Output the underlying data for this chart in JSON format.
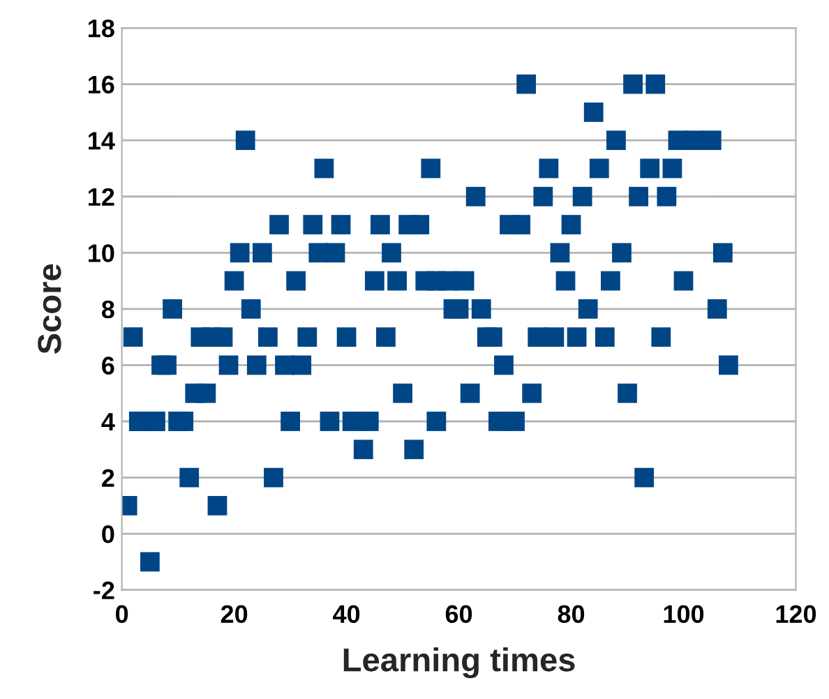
{
  "chart_data": {
    "type": "scatter",
    "xlabel": "Learning times",
    "ylabel": "Score",
    "x": [
      1,
      2,
      3,
      5,
      6,
      7,
      8,
      9,
      10,
      11,
      12,
      13,
      14,
      15,
      16,
      17,
      18,
      19,
      20,
      21,
      22,
      23,
      24,
      25,
      26,
      27,
      28,
      29,
      30,
      31,
      32,
      33,
      34,
      35,
      36,
      37,
      38,
      39,
      40,
      41,
      43,
      44,
      45,
      46,
      47,
      48,
      49,
      50,
      51,
      52,
      53,
      54,
      55,
      56,
      56,
      58,
      59,
      60,
      61,
      62,
      63,
      64,
      65,
      66,
      67,
      68,
      69,
      70,
      71,
      72,
      73,
      74,
      75,
      76,
      77,
      78,
      79,
      80,
      81,
      82,
      83,
      84,
      85,
      86,
      87,
      88,
      89,
      90,
      91,
      92,
      93,
      94,
      95,
      96,
      97,
      98,
      99,
      100,
      102,
      105,
      106,
      107,
      108
    ],
    "series": [
      {
        "color": "#004586",
        "values": [
          1,
          7,
          4,
          -1,
          4,
          6,
          6,
          8,
          4,
          4,
          2,
          5,
          7,
          5,
          7,
          1,
          7,
          6,
          9,
          10,
          14,
          8,
          6,
          10,
          7,
          2,
          11,
          6,
          4,
          9,
          6,
          7,
          11,
          10,
          13,
          4,
          10,
          11,
          7,
          4,
          3,
          4,
          9,
          11,
          7,
          10,
          9,
          5,
          11,
          3,
          11,
          9,
          13,
          9,
          4,
          9,
          8,
          8,
          9,
          5,
          12,
          8,
          7,
          7,
          4,
          6,
          11,
          4,
          11,
          16,
          5,
          7,
          12,
          13,
          7,
          10,
          9,
          11,
          7,
          12,
          8,
          15,
          13,
          7,
          9,
          14,
          10,
          5,
          16,
          12,
          2,
          13,
          16,
          7,
          12,
          13,
          14,
          9,
          14,
          14,
          8,
          10,
          6
        ]
      }
    ],
    "marker": "square",
    "xlim": [
      0,
      120
    ],
    "xticks": [
      0,
      20,
      40,
      60,
      80,
      100,
      120
    ],
    "ylim": [
      -2,
      18
    ],
    "yticks": [
      -2,
      0,
      2,
      4,
      6,
      8,
      10,
      12,
      14,
      16,
      18
    ],
    "grid": "y",
    "legend": false
  }
}
